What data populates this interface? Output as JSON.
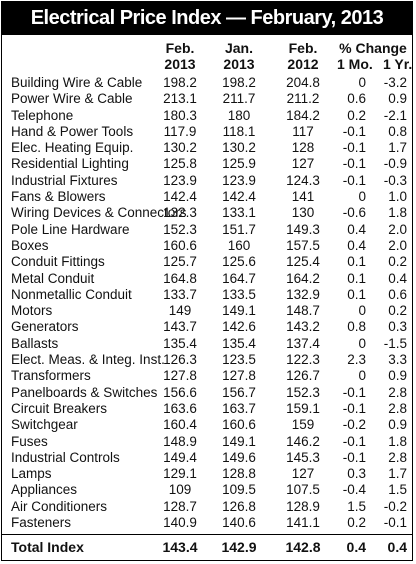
{
  "title": "Electrical Price Index — February, 2013",
  "columns": {
    "feb2013": [
      "Feb.",
      "2013"
    ],
    "jan2013": [
      "Jan.",
      "2013"
    ],
    "feb2012": [
      "Feb.",
      "2012"
    ],
    "pct_change": "% Change",
    "one_mo": "1 Mo.",
    "one_yr": "1 Yr."
  },
  "rows": [
    {
      "name": "Building Wire & Cable",
      "feb13": "198.2",
      "jan13": "198.2",
      "feb12": "204.8",
      "mo": "0",
      "yr": "-3.2"
    },
    {
      "name": "Power Wire & Cable",
      "feb13": "213.1",
      "jan13": "211.7",
      "feb12": "211.2",
      "mo": "0.6",
      "yr": "0.9"
    },
    {
      "name": "Telephone",
      "feb13": "180.3",
      "jan13": "180",
      "feb12": "184.2",
      "mo": "0.2",
      "yr": "-2.1"
    },
    {
      "name": "Hand & Power Tools",
      "feb13": "117.9",
      "jan13": "118.1",
      "feb12": "117",
      "mo": "-0.1",
      "yr": "0.8"
    },
    {
      "name": "Elec. Heating Equip.",
      "feb13": "130.2",
      "jan13": "130.2",
      "feb12": "128",
      "mo": "-0.1",
      "yr": "1.7"
    },
    {
      "name": "Residential Lighting",
      "feb13": "125.8",
      "jan13": "125.9",
      "feb12": "127",
      "mo": "-0.1",
      "yr": "-0.9"
    },
    {
      "name": "Industrial Fixtures",
      "feb13": "123.9",
      "jan13": "123.9",
      "feb12": "124.3",
      "mo": "-0.1",
      "yr": "-0.3"
    },
    {
      "name": "Fans & Blowers",
      "feb13": "142.4",
      "jan13": "142.4",
      "feb12": "141",
      "mo": "0",
      "yr": "1.0"
    },
    {
      "name": "Wiring Devices & Connectors",
      "feb13": "132.3",
      "jan13": "133.1",
      "feb12": "130",
      "mo": "-0.6",
      "yr": "1.8"
    },
    {
      "name": "Pole Line Hardware",
      "feb13": "152.3",
      "jan13": "151.7",
      "feb12": "149.3",
      "mo": "0.4",
      "yr": "2.0"
    },
    {
      "name": "Boxes",
      "feb13": "160.6",
      "jan13": "160",
      "feb12": "157.5",
      "mo": "0.4",
      "yr": "2.0"
    },
    {
      "name": "Conduit Fittings",
      "feb13": "125.7",
      "jan13": "125.6",
      "feb12": "125.4",
      "mo": "0.1",
      "yr": "0.2"
    },
    {
      "name": "Metal Conduit",
      "feb13": "164.8",
      "jan13": "164.7",
      "feb12": "164.2",
      "mo": "0.1",
      "yr": "0.4"
    },
    {
      "name": "Nonmetallic Conduit",
      "feb13": "133.7",
      "jan13": "133.5",
      "feb12": "132.9",
      "mo": "0.1",
      "yr": "0.6"
    },
    {
      "name": "Motors",
      "feb13": "149",
      "jan13": "149.1",
      "feb12": "148.7",
      "mo": "0",
      "yr": "0.2"
    },
    {
      "name": "Generators",
      "feb13": "143.7",
      "jan13": "142.6",
      "feb12": "143.2",
      "mo": "0.8",
      "yr": "0.3"
    },
    {
      "name": "Ballasts",
      "feb13": "135.4",
      "jan13": "135.4",
      "feb12": "137.4",
      "mo": "0",
      "yr": "-1.5"
    },
    {
      "name": "Elect. Meas. & Integ. Inst.",
      "feb13": "126.3",
      "jan13": "123.5",
      "feb12": "122.3",
      "mo": "2.3",
      "yr": "3.3"
    },
    {
      "name": "Transformers",
      "feb13": "127.8",
      "jan13": "127.8",
      "feb12": "126.7",
      "mo": "0",
      "yr": "0.9"
    },
    {
      "name": "Panelboards & Switches",
      "feb13": "156.6",
      "jan13": "156.7",
      "feb12": "152.3",
      "mo": "-0.1",
      "yr": "2.8"
    },
    {
      "name": "Circuit Breakers",
      "feb13": "163.6",
      "jan13": "163.7",
      "feb12": "159.1",
      "mo": "-0.1",
      "yr": "2.8"
    },
    {
      "name": "Switchgear",
      "feb13": "160.4",
      "jan13": "160.6",
      "feb12": "159",
      "mo": "-0.2",
      "yr": "0.9"
    },
    {
      "name": "Fuses",
      "feb13": "148.9",
      "jan13": "149.1",
      "feb12": "146.2",
      "mo": "-0.1",
      "yr": "1.8"
    },
    {
      "name": "Industrial Controls",
      "feb13": "149.4",
      "jan13": "149.6",
      "feb12": "145.3",
      "mo": "-0.1",
      "yr": "2.8"
    },
    {
      "name": "Lamps",
      "feb13": "129.1",
      "jan13": "128.8",
      "feb12": "127",
      "mo": "0.3",
      "yr": "1.7"
    },
    {
      "name": "Appliances",
      "feb13": "109",
      "jan13": "109.5",
      "feb12": "107.5",
      "mo": "-0.4",
      "yr": "1.5"
    },
    {
      "name": "Air Conditioners",
      "feb13": "128.7",
      "jan13": "126.8",
      "feb12": "128.9",
      "mo": "1.5",
      "yr": "-0.2"
    },
    {
      "name": "Fasteners",
      "feb13": "140.9",
      "jan13": "140.6",
      "feb12": "141.1",
      "mo": "0.2",
      "yr": "-0.1"
    }
  ],
  "total": {
    "name": "Total Index",
    "feb13": "143.4",
    "jan13": "142.9",
    "feb12": "142.8",
    "mo": "0.4",
    "yr": "0.4"
  }
}
